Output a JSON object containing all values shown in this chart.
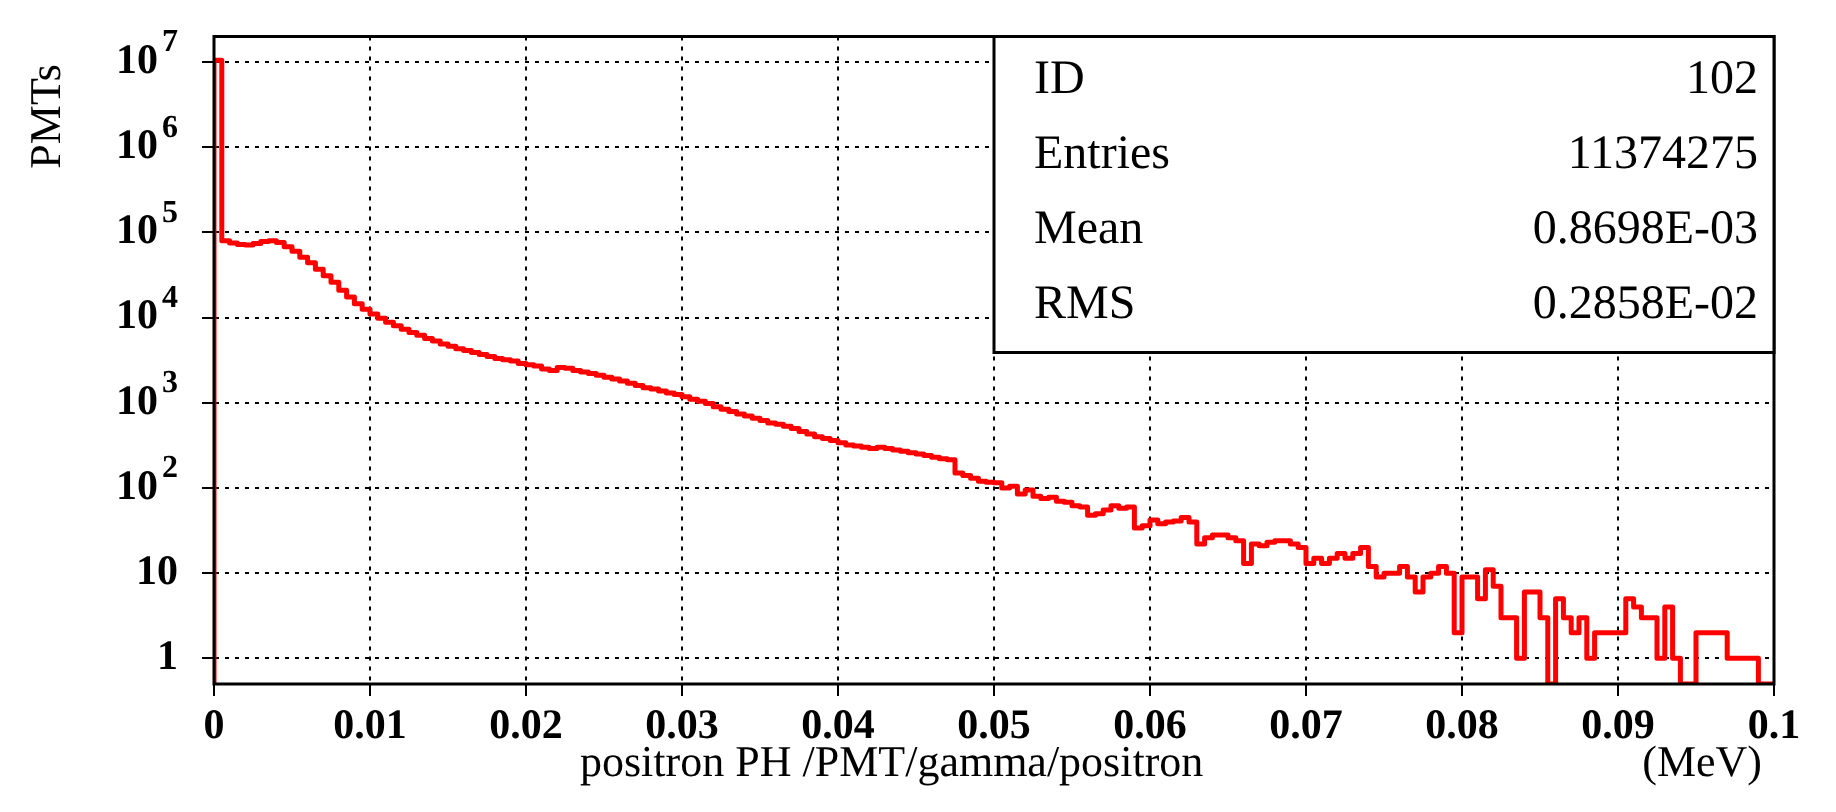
{
  "chart_data": {
    "type": "histogram",
    "xlabel": "positron PH /PMT/gamma/positron",
    "ylabel": "PMTs",
    "color": "#ff0000",
    "log": "y",
    "grid": true,
    "legend": false,
    "xlim": [
      0,
      0.1
    ],
    "xticks": [
      0,
      0.01,
      0.02,
      0.03,
      0.04,
      0.05,
      0.06,
      0.07,
      0.08,
      0.09,
      0.1
    ],
    "ylim": [
      0.5,
      20000000
    ],
    "yticks": [
      1,
      10,
      {
        "value": 100,
        "label": "10$^{2}$"
      },
      {
        "value": 1000,
        "label": "10$^{3}$"
      },
      {
        "value": 10000,
        "label": "10$^{4}$"
      },
      {
        "value": 100000,
        "label": "10$^{5}$"
      },
      {
        "value": 1000000,
        "label": "10$^{6}$"
      },
      {
        "value": 10000000,
        "label": "10$^{7}$"
      }
    ],
    "annotations": [
      "ID",
      "102",
      "Entries",
      "11374275",
      "Mean",
      "0.8698E-03",
      "RMS",
      "0.2858E-02",
      "(MeV)"
    ],
    "bins": [
      0,
      0.0005,
      0.001,
      0.0015,
      0.002,
      0.0025,
      0.003,
      0.0035,
      0.004,
      0.0045,
      0.005,
      0.0055,
      0.006,
      0.0065,
      0.007,
      0.0075,
      0.008,
      0.0085,
      0.009,
      0.0095,
      0.01,
      0.0105,
      0.011,
      0.0115,
      0.012,
      0.0125,
      0.013,
      0.0135,
      0.014,
      0.0145,
      0.015,
      0.0155,
      0.016,
      0.0165,
      0.017,
      0.0175,
      0.018,
      0.0185,
      0.019,
      0.0195,
      0.02,
      0.0205,
      0.021,
      0.0215,
      0.022,
      0.0225,
      0.023,
      0.0235,
      0.024,
      0.0245,
      0.025,
      0.0255,
      0.026,
      0.0265,
      0.027,
      0.0275,
      0.028,
      0.0285,
      0.029,
      0.0295,
      0.03,
      0.0305,
      0.031,
      0.0315,
      0.032,
      0.0325,
      0.033,
      0.0335,
      0.034,
      0.0345,
      0.035,
      0.0355,
      0.036,
      0.0365,
      0.037,
      0.0375,
      0.038,
      0.0385,
      0.039,
      0.0395,
      0.04,
      0.0405,
      0.041,
      0.0415,
      0.042,
      0.0425,
      0.043,
      0.0435,
      0.044,
      0.0445,
      0.045,
      0.0455,
      0.046,
      0.0465,
      0.047,
      0.0475,
      0.048,
      0.0485,
      0.049,
      0.0495,
      0.05,
      0.0505,
      0.051,
      0.0515,
      0.052,
      0.0525,
      0.053,
      0.0535,
      0.054,
      0.0545,
      0.055,
      0.0555,
      0.056,
      0.0565,
      0.057,
      0.0575,
      0.058,
      0.0585,
      0.059,
      0.0595,
      0.06,
      0.0605,
      0.061,
      0.0615,
      0.062,
      0.0625,
      0.063,
      0.0635,
      0.064,
      0.0645,
      0.065,
      0.0655,
      0.066,
      0.0665,
      0.067,
      0.0675,
      0.068,
      0.0685,
      0.069,
      0.0695,
      0.07,
      0.0705,
      0.071,
      0.0715,
      0.072,
      0.0725,
      0.073,
      0.0735,
      0.074,
      0.0745,
      0.075,
      0.0755,
      0.076,
      0.0765,
      0.077,
      0.0775,
      0.078,
      0.0785,
      0.079,
      0.0795,
      0.08,
      0.0805,
      0.081,
      0.0815,
      0.082,
      0.0825,
      0.083,
      0.0835,
      0.084,
      0.0845,
      0.085,
      0.0855,
      0.086,
      0.0865,
      0.087,
      0.0875,
      0.088,
      0.0885,
      0.089,
      0.0895,
      0.09,
      0.0905,
      0.091,
      0.0915,
      0.092,
      0.0925,
      0.093,
      0.0935,
      0.094,
      0.0945,
      0.095,
      0.0955,
      0.096,
      0.0965,
      0.097,
      0.0975,
      0.098,
      0.0985,
      0.099,
      0.0995,
      0.1
    ],
    "values": [
      10500000,
      80000,
      75000,
      72000,
      71000,
      74000,
      78000,
      80000,
      76000,
      68000,
      60000,
      51000,
      44000,
      37000,
      31000,
      26000,
      21000,
      17500,
      14500,
      12500,
      11000,
      9800,
      8800,
      8000,
      7300,
      6700,
      6200,
      5700,
      5300,
      4900,
      4600,
      4300,
      4100,
      3900,
      3700,
      3500,
      3300,
      3200,
      3100,
      2900,
      2800,
      2700,
      2500,
      2400,
      2600,
      2550,
      2400,
      2300,
      2200,
      2100,
      2000,
      1900,
      1800,
      1700,
      1600,
      1500,
      1450,
      1380,
      1300,
      1250,
      1180,
      1100,
      1040,
      980,
      900,
      840,
      790,
      740,
      700,
      660,
      620,
      580,
      560,
      530,
      500,
      460,
      430,
      400,
      380,
      360,
      340,
      320,
      310,
      300,
      290,
      300,
      290,
      280,
      270,
      260,
      250,
      240,
      230,
      220,
      215,
      150,
      140,
      130,
      120,
      117,
      115,
      100,
      105,
      85,
      95,
      80,
      75,
      78,
      70,
      68,
      62,
      60,
      48,
      50,
      55,
      62,
      58,
      60,
      34,
      36,
      42,
      38,
      40,
      41,
      45,
      40,
      22,
      26,
      28,
      28,
      26,
      24,
      13,
      22,
      21,
      23,
      24,
      24,
      22,
      20,
      13,
      15,
      13,
      15,
      17,
      15,
      17,
      20,
      12,
      9,
      10,
      10,
      12,
      9,
      6,
      9,
      10,
      12,
      10,
      2,
      9,
      9,
      5,
      11,
      7,
      3,
      3,
      1,
      6,
      6,
      3,
      null,
      5,
      3,
      2,
      3,
      1,
      2,
      2,
      2,
      2,
      5,
      4,
      3,
      3,
      1,
      4,
      1,
      null,
      null,
      2,
      2,
      2,
      2,
      1,
      1,
      1,
      1,
      null,
      null
    ]
  }
}
